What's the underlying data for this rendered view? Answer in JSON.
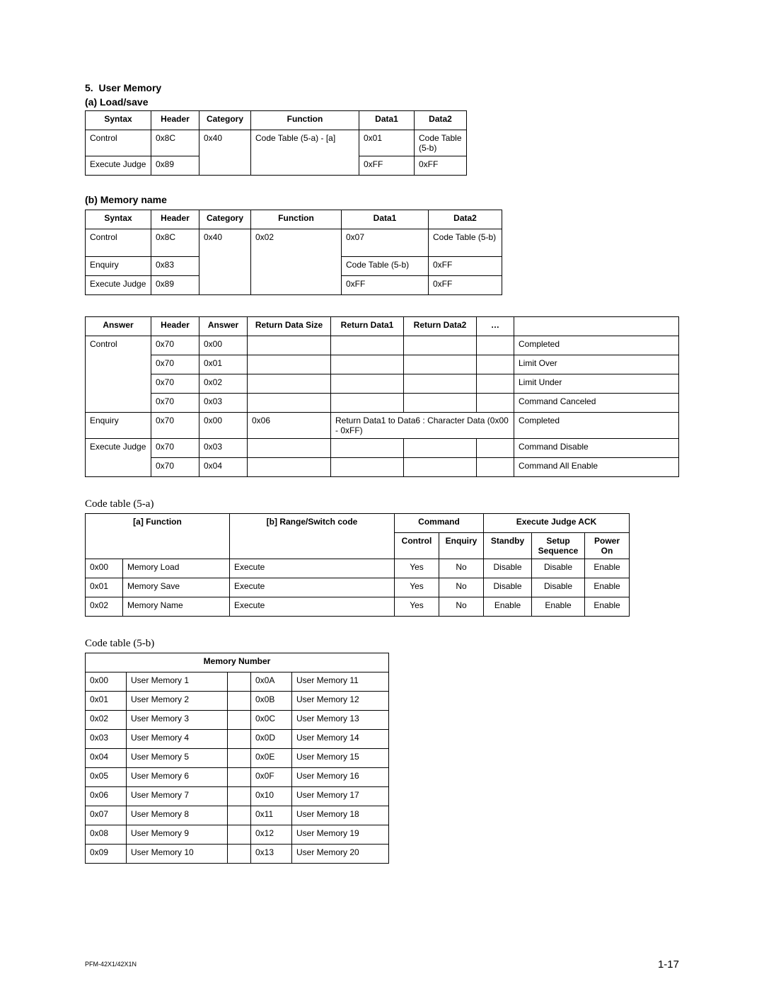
{
  "section": {
    "num": "5.",
    "title": "User Memory",
    "sub_a": "(a)  Load/save",
    "sub_b": "(b)  Memory name"
  },
  "footer": {
    "model": "PFM-42X1/42X1N",
    "page": "1-17"
  },
  "t1": {
    "h": [
      "Syntax",
      "Header",
      "Category",
      "Function",
      "Data1",
      "Data2"
    ],
    "r": [
      [
        "Control",
        "0x8C",
        "0x40",
        "Code Table (5-a) - [a]",
        "0x01",
        "Code Table (5-b)"
      ],
      [
        "Execute Judge",
        "0x89",
        "",
        "",
        "0xFF",
        "0xFF"
      ]
    ]
  },
  "t2": {
    "h": [
      "Syntax",
      "Header",
      "Category",
      "Function",
      "Data1",
      "Data2"
    ],
    "r": [
      [
        "Control",
        "0x8C",
        "0x40",
        "0x02",
        "0x07",
        "Code Table (5-b)"
      ],
      [
        "Enquiry",
        "0x83",
        "",
        "",
        "Code Table (5-b)",
        "0xFF"
      ],
      [
        "Execute Judge",
        "0x89",
        "",
        "",
        "0xFF",
        "0xFF"
      ]
    ]
  },
  "t3": {
    "h": [
      "Answer",
      "Header",
      "Answer",
      "Return Data Size",
      "Return Data1",
      "Return Data2",
      "…",
      ""
    ],
    "r": [
      [
        "Control",
        "0x70",
        "0x00",
        "",
        "",
        "",
        "",
        "Completed"
      ],
      [
        "",
        "0x70",
        "0x01",
        "",
        "",
        "",
        "",
        "Limit Over"
      ],
      [
        "",
        "0x70",
        "0x02",
        "",
        "",
        "",
        "",
        "Limit Under"
      ],
      [
        "",
        "0x70",
        "0x03",
        "",
        "",
        "",
        "",
        "Command Canceled"
      ],
      [
        "Enquiry",
        "0x70",
        "0x00",
        "0x06",
        "Return Data1 to Data6 : Character Data (0x00 - 0xFF)",
        "Completed"
      ],
      [
        "Execute Judge",
        "0x70",
        "0x03",
        "",
        "",
        "",
        "",
        "Command Disable"
      ],
      [
        "",
        "0x70",
        "0x04",
        "",
        "",
        "",
        "",
        "Command All Enable"
      ]
    ]
  },
  "code5a": {
    "title": "Code table (5-a)",
    "h1": [
      "[a] Function",
      "[b] Range/Switch code",
      "Command",
      "Execute Judge ACK"
    ],
    "h2": [
      "Control",
      "Enquiry",
      "Standby",
      "Setup Sequence",
      "Power On"
    ],
    "r": [
      [
        "0x00",
        "Memory Load",
        "Execute",
        "Yes",
        "No",
        "Disable",
        "Disable",
        "Enable"
      ],
      [
        "0x01",
        "Memory Save",
        "Execute",
        "Yes",
        "No",
        "Disable",
        "Disable",
        "Enable"
      ],
      [
        "0x02",
        "Memory Name",
        "Execute",
        "Yes",
        "No",
        "Enable",
        "Enable",
        "Enable"
      ]
    ]
  },
  "code5b": {
    "title": "Code table (5-b)",
    "h": "Memory Number",
    "r": [
      [
        "0x00",
        "User Memory 1",
        "0x0A",
        "User Memory 11"
      ],
      [
        "0x01",
        "User Memory 2",
        "0x0B",
        "User Memory 12"
      ],
      [
        "0x02",
        "User Memory 3",
        "0x0C",
        "User Memory 13"
      ],
      [
        "0x03",
        "User Memory 4",
        "0x0D",
        "User Memory 14"
      ],
      [
        "0x04",
        "User Memory 5",
        "0x0E",
        "User Memory 15"
      ],
      [
        "0x05",
        "User Memory 6",
        "0x0F",
        "User Memory 16"
      ],
      [
        "0x06",
        "User Memory 7",
        "0x10",
        "User Memory 17"
      ],
      [
        "0x07",
        "User Memory 8",
        "0x11",
        "User Memory 18"
      ],
      [
        "0x08",
        "User Memory 9",
        "0x12",
        "User Memory 19"
      ],
      [
        "0x09",
        "User Memory 10",
        "0x13",
        "User Memory 20"
      ]
    ]
  }
}
